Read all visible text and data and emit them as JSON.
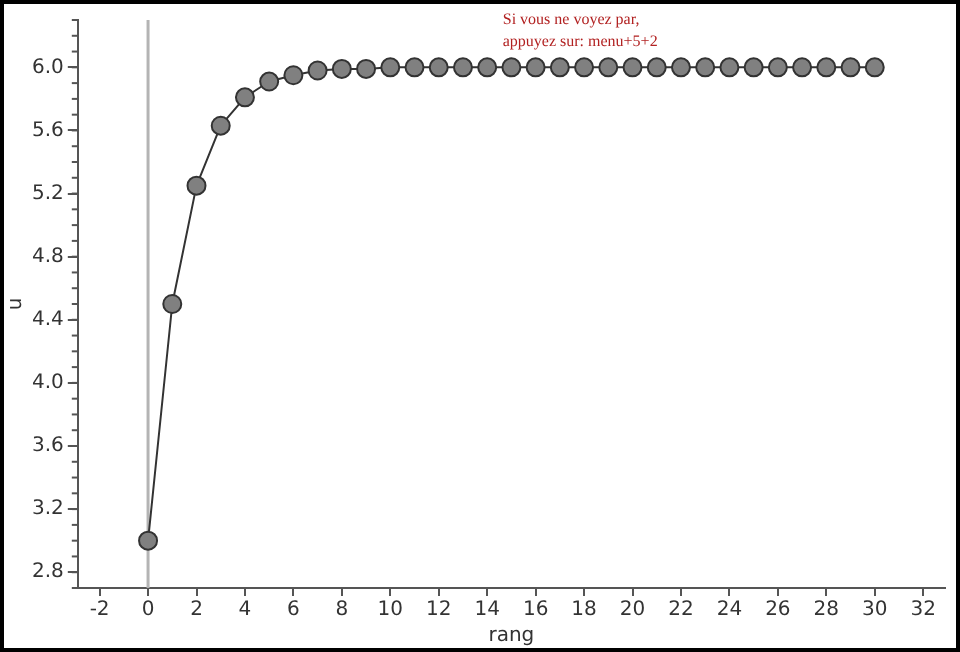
{
  "chart_data": {
    "type": "line",
    "xlabel": "rang",
    "ylabel": "u",
    "x": [
      0,
      1,
      2,
      3,
      4,
      5,
      6,
      7,
      8,
      9,
      10,
      11,
      12,
      13,
      14,
      15,
      16,
      17,
      18,
      19,
      20,
      21,
      22,
      23,
      24,
      25,
      26,
      27,
      28,
      29,
      30
    ],
    "series": [
      {
        "color": "#808080",
        "values": [
          3,
          4.5,
          5.25,
          5.63,
          5.81,
          5.91,
          5.95,
          5.98,
          5.99,
          5.99,
          6,
          6,
          6,
          6,
          6,
          6,
          6,
          6,
          6,
          6,
          6,
          6,
          6,
          6,
          6,
          6,
          6,
          6,
          6,
          6,
          6
        ]
      }
    ],
    "xlim": [
      -2.9,
      32.9
    ],
    "xticks": [
      -2,
      0,
      2,
      4,
      6,
      8,
      10,
      12,
      14,
      16,
      18,
      20,
      22,
      24,
      26,
      28,
      30,
      32
    ],
    "ylim": [
      2.7,
      6.3
    ],
    "yticks": [
      {
        "value": 2.8,
        "label": "2.8"
      },
      {
        "value": 3.2,
        "label": "3.2"
      },
      {
        "value": 3.6,
        "label": "3.6"
      },
      {
        "value": 4.0,
        "label": "4.0"
      },
      {
        "value": 4.4,
        "label": "4.4"
      },
      {
        "value": 4.8,
        "label": "4.8"
      },
      {
        "value": 5.2,
        "label": "5.2"
      },
      {
        "value": 5.6,
        "label": "5.6"
      },
      {
        "value": 6.0,
        "label": "6.0"
      }
    ],
    "ref_lines": [
      {
        "axis": "x",
        "value": 0,
        "color": "#b4b4b4"
      }
    ],
    "annotations": [
      "Si vous ne voyez par,\nappuyez sur: menu+5+2"
    ],
    "grid": false,
    "legend": false,
    "marker": "circle",
    "line_style": "solid"
  }
}
